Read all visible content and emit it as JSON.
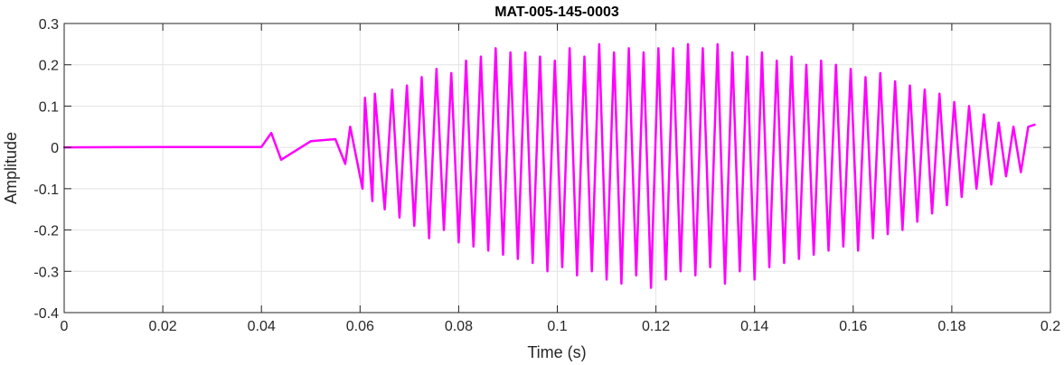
{
  "chart_data": {
    "type": "line",
    "title": "MAT-005-145-0003",
    "xlabel": "Time (s)",
    "ylabel": "Amplitude",
    "xlim": [
      0,
      0.2
    ],
    "ylim": [
      -0.4,
      0.3
    ],
    "xticks": [
      0,
      0.02,
      0.04,
      0.06,
      0.08,
      0.1,
      0.12,
      0.14,
      0.16,
      0.18,
      0.2
    ],
    "xtick_labels": [
      "0",
      "0.02",
      "0.04",
      "0.06",
      "0.08",
      "0.1",
      "0.12",
      "0.14",
      "0.16",
      "0.18",
      "0.2"
    ],
    "yticks": [
      -0.4,
      -0.3,
      -0.2,
      -0.1,
      0,
      0.1,
      0.2,
      0.3
    ],
    "ytick_labels": [
      "-0.4",
      "-0.3",
      "-0.2",
      "-0.1",
      "0",
      "0.1",
      "0.2",
      "0.3"
    ],
    "grid": true,
    "series": [
      {
        "color": "#ff00ff",
        "x": [
          0,
          0.02,
          0.04,
          0.042,
          0.044,
          0.05,
          0.055,
          0.057,
          0.058,
          0.0605,
          0.061,
          0.0625,
          0.063,
          0.065,
          0.0665,
          0.068,
          0.0695,
          0.071,
          0.0725,
          0.074,
          0.0755,
          0.077,
          0.0785,
          0.08,
          0.0815,
          0.083,
          0.0845,
          0.086,
          0.0875,
          0.089,
          0.0905,
          0.092,
          0.0935,
          0.095,
          0.0965,
          0.098,
          0.0995,
          0.101,
          0.1025,
          0.104,
          0.1055,
          0.107,
          0.1085,
          0.11,
          0.1115,
          0.113,
          0.1145,
          0.116,
          0.1175,
          0.119,
          0.1205,
          0.122,
          0.1235,
          0.125,
          0.1265,
          0.128,
          0.1295,
          0.131,
          0.1325,
          0.134,
          0.1355,
          0.137,
          0.1385,
          0.14,
          0.1415,
          0.143,
          0.1445,
          0.146,
          0.1475,
          0.149,
          0.1505,
          0.152,
          0.1535,
          0.155,
          0.1565,
          0.158,
          0.1595,
          0.161,
          0.1625,
          0.164,
          0.1655,
          0.167,
          0.1685,
          0.17,
          0.1715,
          0.173,
          0.1745,
          0.176,
          0.1775,
          0.179,
          0.1805,
          0.182,
          0.1835,
          0.185,
          0.1865,
          0.188,
          0.1895,
          0.191,
          0.1925,
          0.194,
          0.1955,
          0.1968
        ],
        "y": [
          0,
          0.001,
          0.001,
          0.035,
          -0.03,
          0.015,
          0.02,
          -0.04,
          0.05,
          -0.1,
          0.12,
          -0.13,
          0.13,
          -0.15,
          0.14,
          -0.17,
          0.15,
          -0.19,
          0.17,
          -0.22,
          0.19,
          -0.2,
          0.18,
          -0.23,
          0.21,
          -0.24,
          0.22,
          -0.25,
          0.24,
          -0.26,
          0.23,
          -0.27,
          0.23,
          -0.28,
          0.22,
          -0.3,
          0.21,
          -0.29,
          0.24,
          -0.31,
          0.22,
          -0.3,
          0.25,
          -0.32,
          0.23,
          -0.33,
          0.24,
          -0.31,
          0.23,
          -0.34,
          0.24,
          -0.32,
          0.24,
          -0.3,
          0.25,
          -0.31,
          0.24,
          -0.29,
          0.25,
          -0.33,
          0.23,
          -0.3,
          0.22,
          -0.32,
          0.23,
          -0.29,
          0.21,
          -0.28,
          0.22,
          -0.27,
          0.2,
          -0.26,
          0.21,
          -0.25,
          0.2,
          -0.24,
          0.19,
          -0.25,
          0.17,
          -0.22,
          0.18,
          -0.21,
          0.16,
          -0.2,
          0.15,
          -0.18,
          0.14,
          -0.16,
          0.13,
          -0.14,
          0.11,
          -0.12,
          0.1,
          -0.1,
          0.08,
          -0.09,
          0.06,
          -0.07,
          0.05,
          -0.06,
          0.05,
          0.055
        ]
      }
    ]
  }
}
